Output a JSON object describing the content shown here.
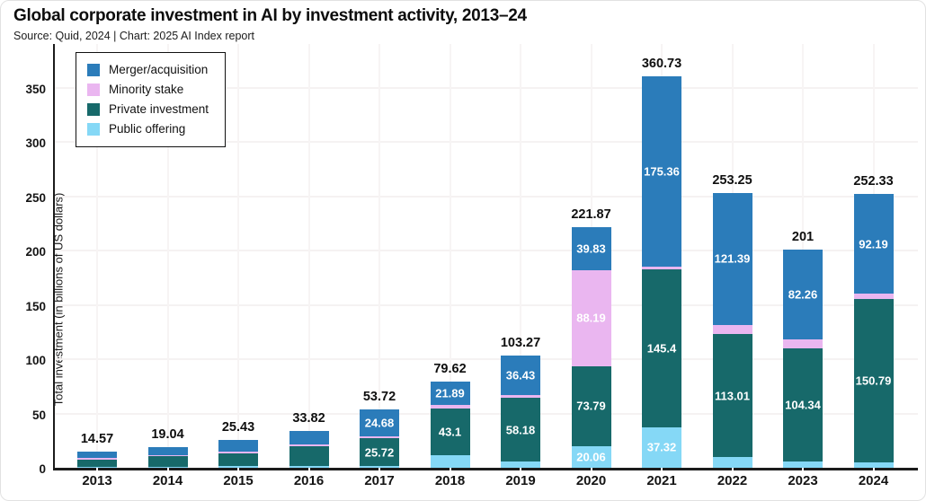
{
  "header": {
    "title": "Global corporate investment in AI by investment activity, 2013–24",
    "subtitle": "Source: Quid, 2024 | Chart: 2025 AI Index report"
  },
  "colors": {
    "merger_acquisition": "#2b7cba",
    "minority_stake": "#eab6f0",
    "private_investment": "#17696a",
    "public_offering": "#85d8f6",
    "axis_spine": "#1b1b1b",
    "gridline": "#f5f2f2",
    "bar_label_text": "#ffffff",
    "text": "#111111"
  },
  "chart_data": {
    "type": "bar",
    "stacked": true,
    "title": "Global corporate investment in AI by investment activity, 2013–24",
    "xlabel": "",
    "ylabel": "Total investment (in billions of US dollars)",
    "ylim": [
      0,
      393
    ],
    "yticks": [
      0,
      50,
      100,
      150,
      200,
      250,
      300,
      350
    ],
    "grid": true,
    "legend_position": "upper-left",
    "categories": [
      "2013",
      "2014",
      "2015",
      "2016",
      "2017",
      "2018",
      "2019",
      "2020",
      "2021",
      "2022",
      "2023",
      "2024"
    ],
    "series": [
      {
        "name": "Public offering",
        "color": "#85d8f6",
        "values": [
          1.17,
          0.84,
          1.43,
          1.82,
          1.32,
          11.25,
          6.0,
          20.06,
          37.32,
          10.0,
          5.5,
          4.68
        ]
      },
      {
        "name": "Private investment",
        "color": "#17696a",
        "values": [
          6.6,
          9.9,
          12.1,
          17.7,
          25.72,
          43.1,
          58.18,
          73.79,
          145.4,
          113.01,
          104.34,
          150.79
        ]
      },
      {
        "name": "Minority stake",
        "color": "#eab6f0",
        "values": [
          1.0,
          0.6,
          1.6,
          2.1,
          2.0,
          3.38,
          2.66,
          88.19,
          2.65,
          8.85,
          8.9,
          4.67
        ]
      },
      {
        "name": "Merger/acquisition",
        "color": "#2b7cba",
        "values": [
          5.8,
          7.7,
          10.3,
          12.2,
          24.68,
          21.89,
          36.43,
          39.83,
          175.36,
          121.39,
          82.26,
          92.19
        ]
      }
    ],
    "totals": [
      "14.57",
      "19.04",
      "25.43",
      "33.82",
      "53.72",
      "79.62",
      "103.27",
      "221.87",
      "360.73",
      "253.25",
      "201",
      "252.33"
    ],
    "label_threshold": 20,
    "legend": [
      {
        "label": "Merger/acquisition",
        "color": "#2b7cba"
      },
      {
        "label": "Minority stake",
        "color": "#eab6f0"
      },
      {
        "label": "Private investment",
        "color": "#17696a"
      },
      {
        "label": "Public offering",
        "color": "#85d8f6"
      }
    ]
  }
}
